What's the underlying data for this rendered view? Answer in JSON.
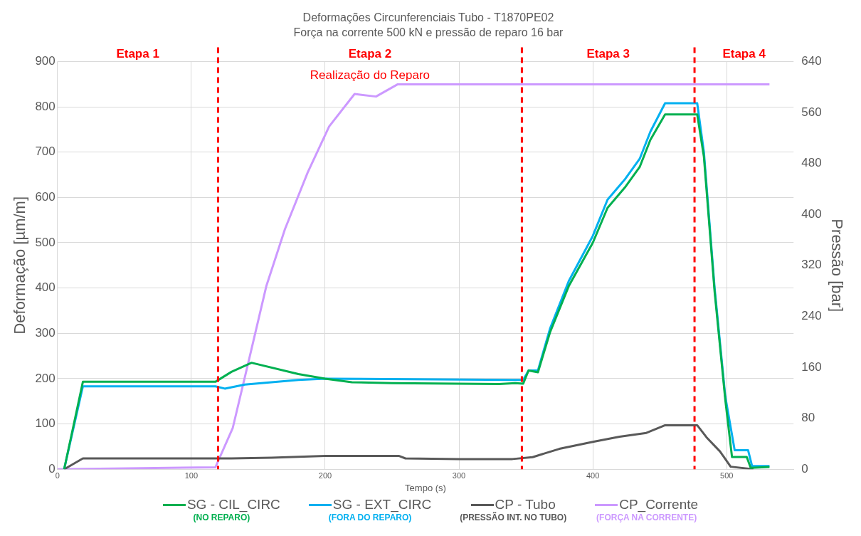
{
  "chart_data": {
    "type": "line",
    "title": "Deformações Circunferenciais Tubo - T1870PE02",
    "subtitle": "Força na corrente 500 kN e pressão de reparo 16 bar",
    "xlabel": "Tempo (s)",
    "ylabel": "Deformação [µm/m]",
    "y2label": "Pressão [bar]",
    "xlim": [
      0,
      550
    ],
    "xticks": [
      0,
      100,
      200,
      300,
      400,
      500
    ],
    "ylim": [
      0,
      900
    ],
    "yticks": [
      0,
      100,
      200,
      300,
      400,
      500,
      600,
      700,
      800,
      900
    ],
    "y2lim": [
      0,
      640
    ],
    "y2ticks": [
      0,
      80,
      160,
      240,
      320,
      400,
      480,
      560,
      640
    ],
    "grid": true,
    "legend": "bottom",
    "marker": "none",
    "line_style": "solid",
    "series": [
      {
        "name": "SG - CIL_CIRC",
        "color": "#00b050",
        "x": [
          5,
          19,
          118,
          130,
          145,
          180,
          200,
          220,
          250,
          330,
          342,
          348,
          352,
          359,
          368,
          382,
          400,
          411,
          424,
          435,
          443,
          454,
          478,
          483,
          491,
          499,
          504,
          515,
          518,
          532
        ],
        "values": [
          0,
          193,
          193,
          215,
          235,
          210,
          200,
          192,
          190,
          188,
          190,
          189,
          218,
          214,
          302,
          404,
          500,
          577,
          622,
          667,
          727,
          783,
          783,
          690,
          392,
          153,
          27,
          27,
          3,
          5
        ]
      },
      {
        "name": "SG - EXT_CIRC",
        "color": "#00b0f0",
        "x": [
          5,
          19,
          118,
          125,
          140,
          180,
          200,
          340,
          348,
          352,
          359,
          368,
          382,
          400,
          411,
          424,
          435,
          443,
          454,
          478,
          483,
          491,
          499,
          506,
          516,
          519,
          532
        ],
        "values": [
          0,
          183,
          183,
          178,
          187,
          197,
          200,
          197,
          197,
          218,
          218,
          310,
          415,
          515,
          595,
          640,
          685,
          745,
          808,
          808,
          700,
          400,
          160,
          42,
          42,
          7,
          7
        ]
      },
      {
        "name": "CP - Tubo",
        "color": "#595959",
        "axis": "y2",
        "x": [
          5,
          19,
          130,
          160,
          200,
          255,
          260,
          300,
          340,
          355,
          375,
          400,
          420,
          440,
          454,
          478,
          485,
          495,
          503,
          520
        ],
        "values": [
          0,
          17,
          17,
          18,
          21,
          21,
          17,
          16,
          16,
          19,
          32,
          43,
          51,
          57,
          69,
          69,
          50,
          28,
          4,
          0
        ]
      },
      {
        "name": "CP_Corrente",
        "color": "#cc99ff",
        "axis": "y2",
        "x": [
          0,
          118,
          131,
          143,
          156,
          170,
          187,
          203,
          222,
          238,
          254,
          532
        ],
        "values": [
          0,
          3,
          65,
          171,
          287,
          377,
          466,
          538,
          589,
          585,
          604,
          604
        ]
      }
    ],
    "ref_lines": [
      {
        "axis": "x",
        "value": 120,
        "color": "#ff0000",
        "line_style": "dashed"
      },
      {
        "axis": "x",
        "value": 347,
        "color": "#ff0000",
        "line_style": "dashed"
      },
      {
        "axis": "x",
        "value": 476,
        "color": "#ff0000",
        "line_style": "dashed"
      }
    ],
    "annotations": [
      "(NO REPARO)",
      "(FORA DO REPARO)",
      "(PRESSÃO INT. NO TUBO)",
      "(FORÇA NA CORRENTE)",
      "Etapa 1",
      "Etapa 2",
      "Etapa 3",
      "Etapa 4",
      "Realização do Reparo"
    ]
  }
}
